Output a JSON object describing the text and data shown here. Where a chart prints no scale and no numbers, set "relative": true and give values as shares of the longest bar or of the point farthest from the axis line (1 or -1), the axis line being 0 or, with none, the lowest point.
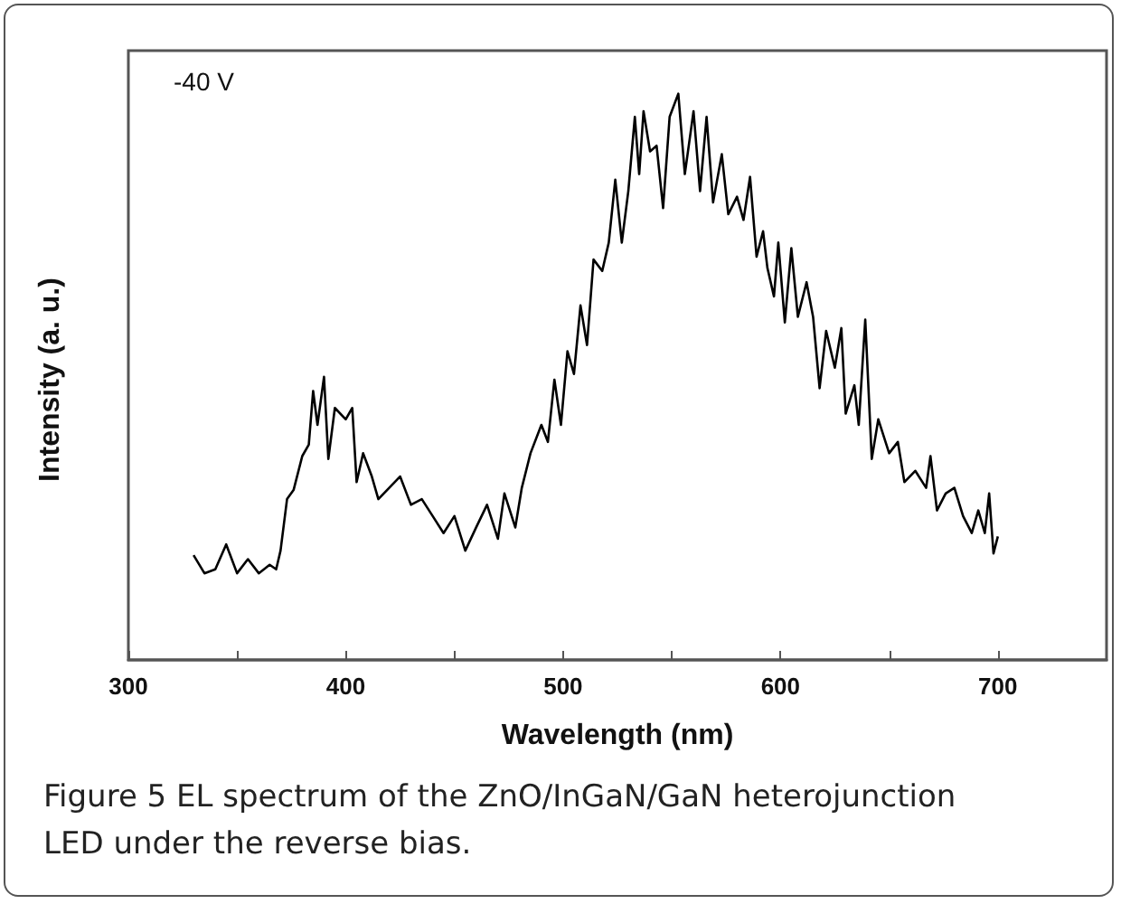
{
  "chart_data": {
    "type": "line",
    "title": "Figure 5 EL spectrum of the ZnO/InGaN/GaN heterojunction LED under the reverse bias.",
    "xlabel": "Wavelength (nm)",
    "ylabel": "Intensity (a. u.)",
    "annotations": [
      "-40 V"
    ],
    "relative": true,
    "xlim": [
      300,
      750
    ],
    "xticks": [
      300,
      {
        "value": 350,
        "label": null
      },
      400,
      {
        "value": 450,
        "label": null
      },
      500,
      {
        "value": 550,
        "label": null
      },
      600,
      {
        "value": 650,
        "label": null
      },
      700
    ],
    "grid": false,
    "marker": "none",
    "line_style": "solid",
    "series": [
      {
        "color": "#000000",
        "x": [
          330,
          335,
          340,
          345,
          350,
          355,
          360,
          365,
          368,
          370,
          373,
          376,
          380,
          383,
          385,
          387,
          390,
          392,
          395,
          400,
          403,
          405,
          408,
          412,
          415,
          420,
          425,
          430,
          435,
          440,
          445,
          450,
          455,
          460,
          465,
          470,
          473,
          478,
          481,
          485,
          490,
          493,
          496,
          499,
          502,
          505,
          508,
          511,
          514,
          518,
          521,
          524,
          527,
          530,
          533,
          535,
          537,
          540,
          543,
          546,
          549,
          553,
          556,
          560,
          563,
          566,
          569,
          573,
          576,
          580,
          583,
          586,
          589,
          592,
          594,
          597,
          599,
          602,
          605,
          608,
          612,
          615,
          618,
          621,
          625,
          628,
          630,
          634,
          636,
          639,
          642,
          645,
          650,
          654,
          657,
          662,
          667,
          669,
          672,
          676,
          680,
          684,
          688,
          691,
          694,
          696,
          698,
          700
        ],
        "values": [
          0.185,
          0.153,
          0.16,
          0.204,
          0.153,
          0.178,
          0.153,
          0.168,
          0.16,
          0.193,
          0.284,
          0.3,
          0.36,
          0.38,
          0.475,
          0.415,
          0.5,
          0.355,
          0.445,
          0.425,
          0.445,
          0.314,
          0.365,
          0.324,
          0.284,
          0.304,
          0.324,
          0.274,
          0.284,
          0.254,
          0.224,
          0.254,
          0.193,
          0.234,
          0.274,
          0.214,
          0.294,
          0.234,
          0.304,
          0.365,
          0.415,
          0.385,
          0.495,
          0.415,
          0.545,
          0.505,
          0.626,
          0.556,
          0.707,
          0.687,
          0.737,
          0.848,
          0.737,
          0.828,
          0.959,
          0.858,
          0.969,
          0.898,
          0.908,
          0.798,
          0.959,
          1,
          0.858,
          0.969,
          0.828,
          0.959,
          0.808,
          0.893,
          0.787,
          0.818,
          0.777,
          0.853,
          0.712,
          0.757,
          0.692,
          0.642,
          0.737,
          0.596,
          0.727,
          0.606,
          0.667,
          0.606,
          0.48,
          0.581,
          0.516,
          0.586,
          0.435,
          0.485,
          0.415,
          0.601,
          0.355,
          0.425,
          0.365,
          0.385,
          0.314,
          0.334,
          0.304,
          0.36,
          0.264,
          0.294,
          0.304,
          0.254,
          0.224,
          0.264,
          0.224,
          0.294,
          0.188,
          0.218
        ]
      }
    ]
  }
}
